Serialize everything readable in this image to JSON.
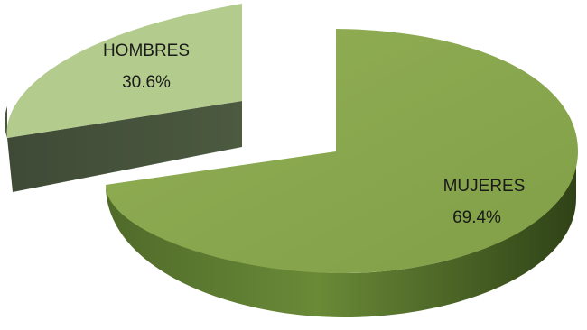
{
  "chart_data": {
    "type": "pie",
    "title": "",
    "labels": [
      "MUJERES",
      "HOMBRES"
    ],
    "values": [
      69.4,
      30.6
    ],
    "data_labels": [
      "69.4%",
      "30.6%"
    ],
    "exploded": "HOMBRES",
    "style": "3d",
    "colors": {
      "MUJERES": "#8aa84e",
      "HOMBRES": "#b3cc8d"
    },
    "legend": "none"
  }
}
